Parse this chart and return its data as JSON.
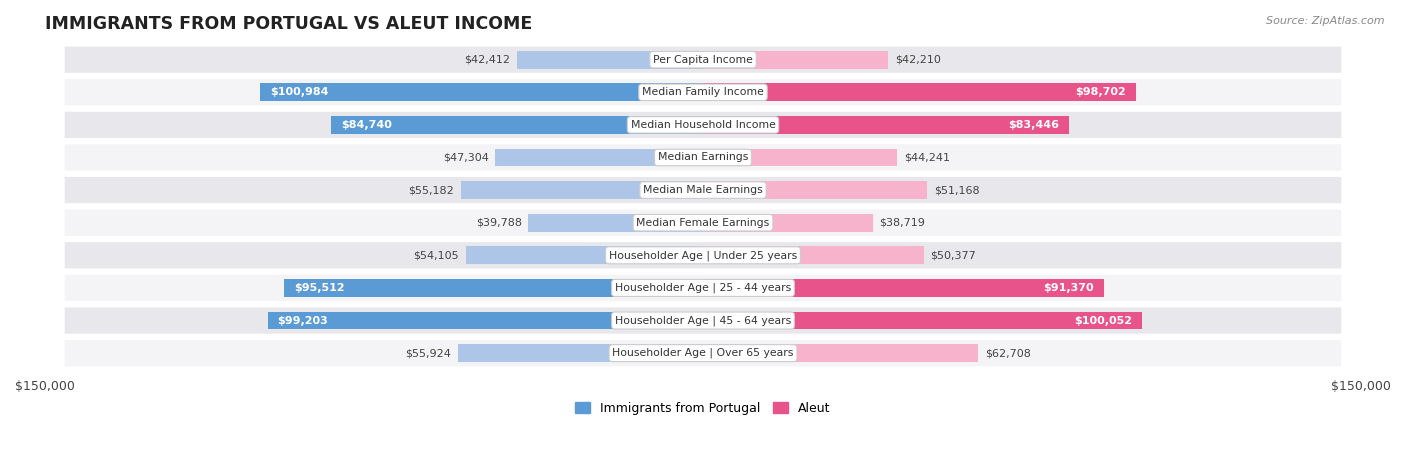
{
  "title": "IMMIGRANTS FROM PORTUGAL VS ALEUT INCOME",
  "source": "Source: ZipAtlas.com",
  "categories": [
    "Per Capita Income",
    "Median Family Income",
    "Median Household Income",
    "Median Earnings",
    "Median Male Earnings",
    "Median Female Earnings",
    "Householder Age | Under 25 years",
    "Householder Age | 25 - 44 years",
    "Householder Age | 45 - 64 years",
    "Householder Age | Over 65 years"
  ],
  "portugal_values": [
    42412,
    100984,
    84740,
    47304,
    55182,
    39788,
    54105,
    95512,
    99203,
    55924
  ],
  "aleut_values": [
    42210,
    98702,
    83446,
    44241,
    51168,
    38719,
    50377,
    91370,
    100052,
    62708
  ],
  "portugal_labels": [
    "$42,412",
    "$100,984",
    "$84,740",
    "$47,304",
    "$55,182",
    "$39,788",
    "$54,105",
    "$95,512",
    "$99,203",
    "$55,924"
  ],
  "aleut_labels": [
    "$42,210",
    "$98,702",
    "$83,446",
    "$44,241",
    "$51,168",
    "$38,719",
    "$50,377",
    "$91,370",
    "$100,052",
    "$62,708"
  ],
  "max_value": 150000,
  "portugal_color_light": "#adc6e8",
  "portugal_color_dark": "#5b9bd5",
  "aleut_color_light": "#f7b3cc",
  "aleut_color_dark": "#e8538a",
  "row_bg_even": "#e8e8ec",
  "row_bg_odd": "#f4f4f6",
  "threshold_solid": 65000,
  "legend_portugal": "Immigrants from Portugal",
  "legend_aleut": "Aleut"
}
